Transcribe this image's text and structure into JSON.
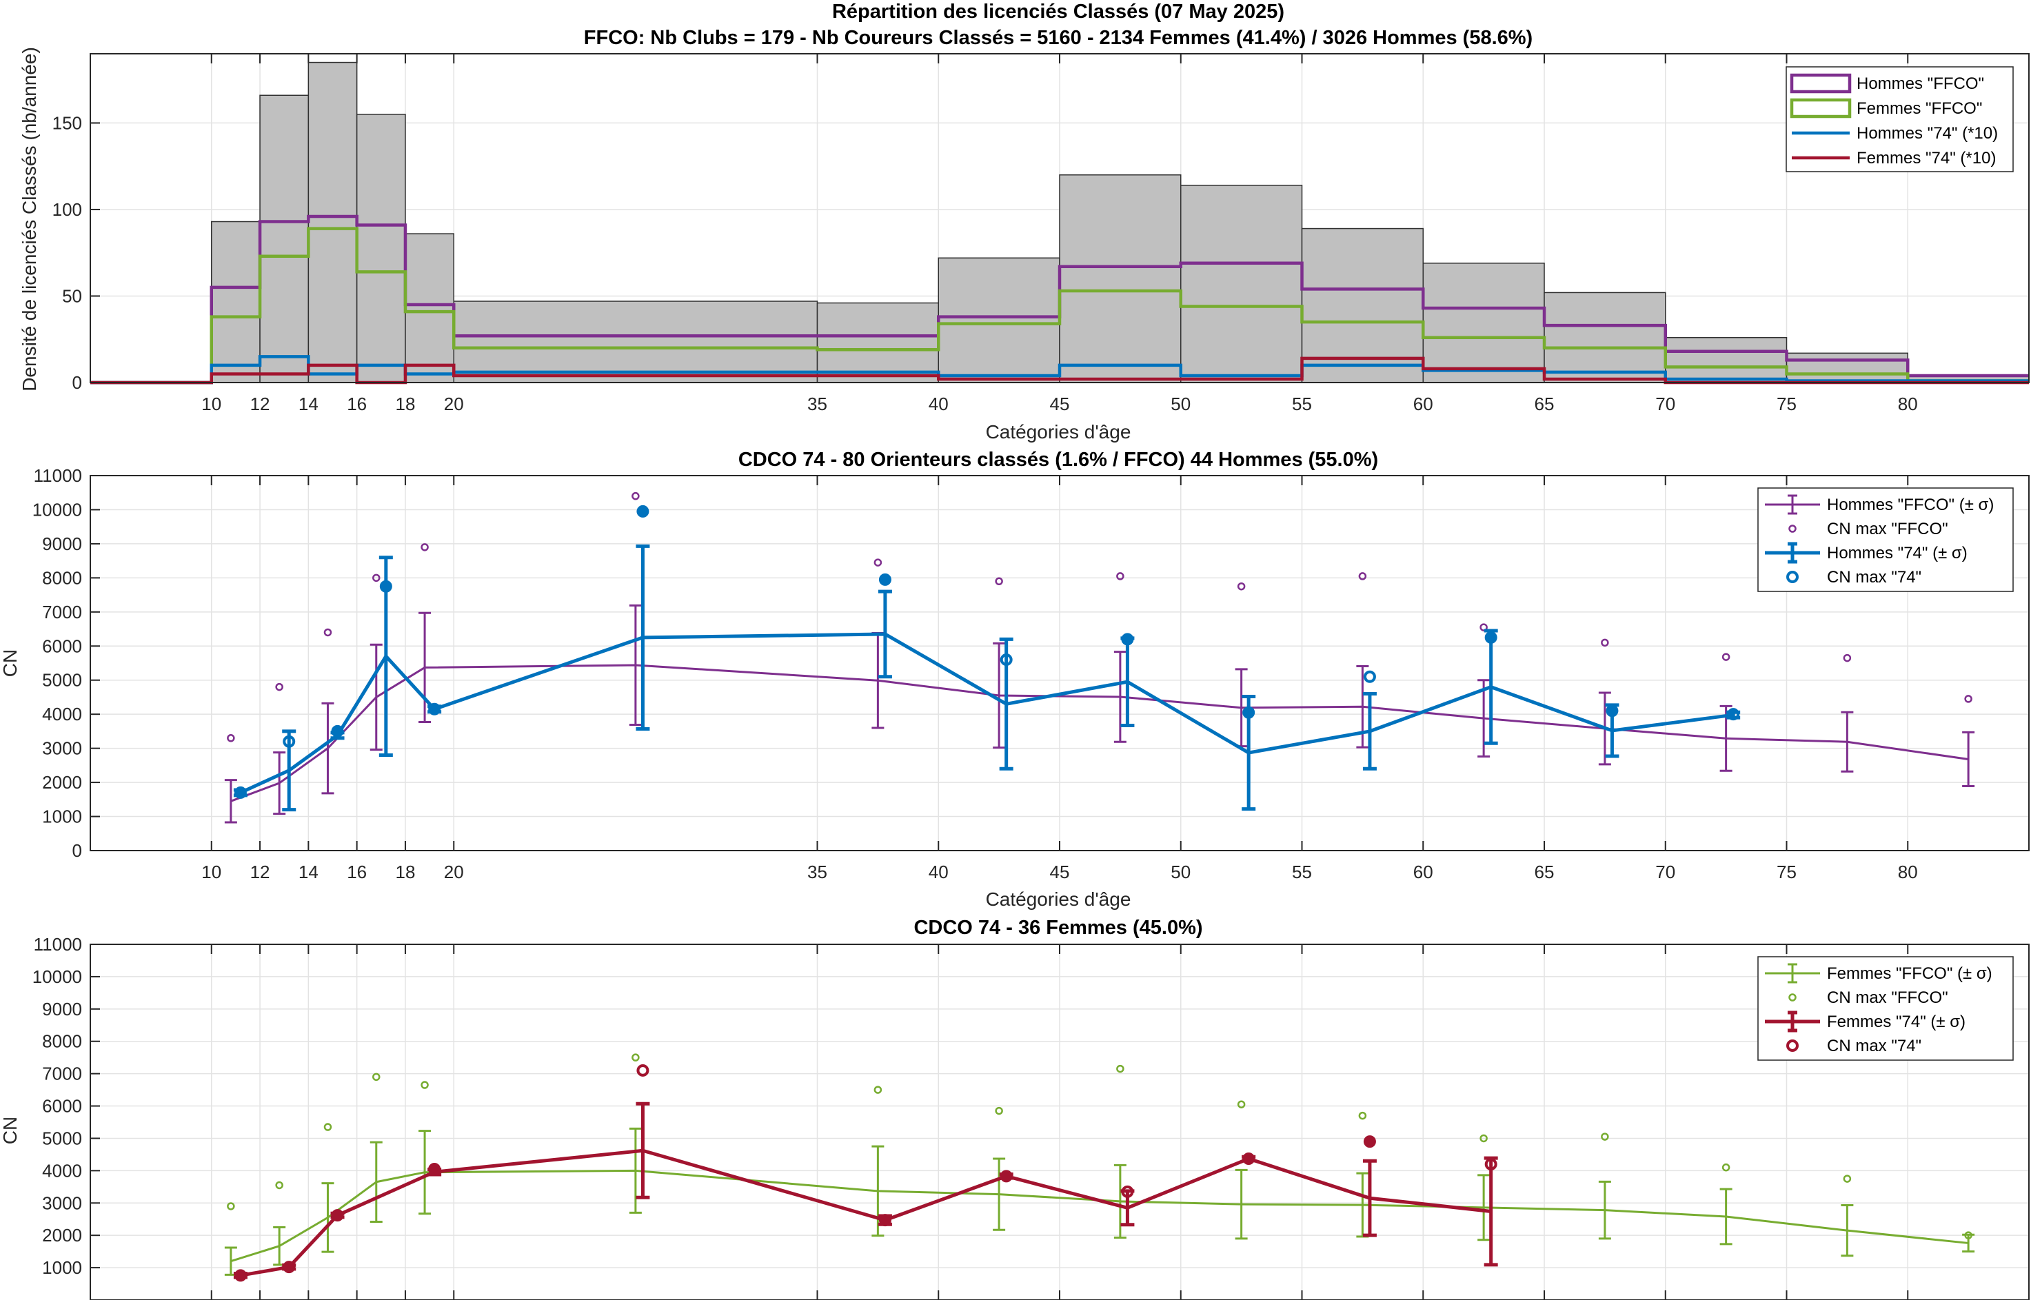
{
  "colors": {
    "hist_fill": "#c0c0c0",
    "hist_edge": "#303030",
    "hommes_ffco": "#7e2f8e",
    "femmes_ffco": "#77ac30",
    "hommes_74": "#0072bd",
    "femmes_74": "#a2142f"
  },
  "chart_data": [
    {
      "type": "histogram",
      "title": "Répartition des licenciés Classés (07 May 2025)",
      "subtitle": "FFCO: Nb Clubs = 179   -   Nb Coureurs Classés = 5160   -   2134 Femmes (41.4%) / 3026 Hommes (58.6%)",
      "xlabel": "Catégories d'âge",
      "ylabel": "Densité de licenciés Classés (nb/année)",
      "xlim": [
        5,
        85
      ],
      "ylim": [
        0,
        190
      ],
      "xticks": [
        10,
        12,
        14,
        16,
        18,
        20,
        35,
        40,
        45,
        50,
        55,
        60,
        65,
        70,
        75,
        80
      ],
      "yticks": [
        0,
        50,
        100,
        150
      ],
      "bin_edges": [
        5,
        10,
        12,
        14,
        16,
        18,
        20,
        35,
        40,
        45,
        50,
        55,
        60,
        65,
        70,
        75,
        80,
        85
      ],
      "total": [
        0,
        93,
        166,
        185,
        155,
        86,
        47,
        46,
        72,
        120,
        114,
        89,
        69,
        52,
        26,
        17,
        4
      ],
      "series": [
        {
          "name": "Hommes \"FFCO\"",
          "values": [
            0,
            55,
            93,
            96,
            91,
            45,
            27,
            27,
            38,
            67,
            69,
            54,
            43,
            33,
            18,
            13,
            4
          ]
        },
        {
          "name": "Femmes \"FFCO\"",
          "values": [
            0,
            38,
            73,
            89,
            64,
            41,
            20,
            19,
            34,
            53,
            44,
            35,
            26,
            20,
            9,
            5,
            1
          ]
        },
        {
          "name": "Hommes \"74\" (*10)",
          "values": [
            0,
            10,
            15,
            5,
            10,
            5,
            6,
            6,
            4,
            10,
            4,
            10,
            7,
            6,
            2,
            1,
            1
          ]
        },
        {
          "name": "Femmes \"74\" (*10)",
          "values": [
            0,
            5,
            5,
            10,
            0,
            10,
            4,
            4,
            2,
            2,
            2,
            14,
            8,
            2,
            0,
            0,
            0
          ]
        }
      ],
      "legend_loc": "top-right"
    },
    {
      "type": "errorbar",
      "title": "CDCO 74  -  80 Orienteurs classés (1.6% / FFCO)  44 Hommes (55.0%)",
      "xlabel": "Catégories d'âge",
      "ylabel": "CN",
      "xlim": [
        5,
        85
      ],
      "ylim": [
        0,
        11000
      ],
      "xticks": [
        10,
        12,
        14,
        16,
        18,
        20,
        35,
        40,
        45,
        50,
        55,
        60,
        65,
        70,
        75,
        80
      ],
      "yticks": [
        0,
        1000,
        2000,
        3000,
        4000,
        5000,
        6000,
        7000,
        8000,
        9000,
        10000,
        11000
      ],
      "series": [
        {
          "name": "Hommes \"FFCO\" (± σ)",
          "x": [
            10.8,
            12.8,
            14.8,
            16.8,
            18.8,
            27.5,
            37.5,
            42.5,
            47.5,
            52.5,
            57.5,
            62.5,
            67.5,
            72.5,
            77.5,
            82.5
          ],
          "y": [
            1450,
            1980,
            3000,
            4500,
            5370,
            5440,
            4990,
            4550,
            4510,
            4190,
            4220,
            3880,
            3580,
            3290,
            3190,
            2680
          ],
          "err": [
            620,
            900,
            1320,
            1540,
            1600,
            1750,
            1390,
            1530,
            1320,
            1130,
            1190,
            1120,
            1050,
            950,
            870,
            790
          ]
        },
        {
          "name": "CN max \"FFCO\"",
          "x": [
            10.8,
            12.8,
            14.8,
            16.8,
            18.8,
            27.5,
            37.5,
            42.5,
            47.5,
            52.5,
            57.5,
            62.5,
            67.5,
            72.5,
            77.5,
            82.5
          ],
          "y": [
            3300,
            4800,
            6400,
            8000,
            8900,
            10400,
            8450,
            7900,
            8050,
            7750,
            8050,
            6550,
            6100,
            5680,
            5650,
            4450
          ]
        },
        {
          "name": "Hommes \"74\" (± σ)",
          "x": [
            11.2,
            13.2,
            15.2,
            17.2,
            19.2,
            27.8,
            37.8,
            42.8,
            47.8,
            52.8,
            57.8,
            62.8,
            67.8,
            72.8
          ],
          "y": [
            1700,
            2350,
            3380,
            5700,
            4150,
            6250,
            6350,
            4300,
            4950,
            2870,
            3500,
            4800,
            3520,
            3980
          ],
          "err": [
            80,
            1150,
            80,
            2900,
            80,
            2680,
            1250,
            1900,
            1280,
            1650,
            1100,
            1650,
            750,
            80
          ]
        },
        {
          "name": "CN max \"74\"",
          "x": [
            11.2,
            13.2,
            15.2,
            17.2,
            19.2,
            27.8,
            37.8,
            42.8,
            47.8,
            52.8,
            57.8,
            62.8,
            67.8,
            72.8
          ],
          "y": [
            1700,
            3200,
            3500,
            7750,
            4150,
            9950,
            7950,
            5600,
            6200,
            4050,
            5100,
            6250,
            4100,
            4000
          ]
        }
      ],
      "legend_loc": "top-right"
    },
    {
      "type": "errorbar",
      "title": "CDCO 74  -  36 Femmes (45.0%)",
      "xlabel": "",
      "ylabel": "CN",
      "xlim": [
        5,
        85
      ],
      "ylim": [
        0,
        11000
      ],
      "yticks": [
        1000,
        2000,
        3000,
        4000,
        5000,
        6000,
        7000,
        8000,
        9000,
        10000,
        11000
      ],
      "series": [
        {
          "name": "Femmes \"FFCO\" (± σ)",
          "x": [
            10.8,
            12.8,
            14.8,
            16.8,
            18.8,
            27.5,
            37.5,
            42.5,
            47.5,
            52.5,
            57.5,
            62.5,
            67.5,
            72.5,
            77.5,
            82.5
          ],
          "y": [
            1200,
            1670,
            2550,
            3650,
            3950,
            4000,
            3370,
            3270,
            3050,
            2960,
            2940,
            2860,
            2780,
            2580,
            2150,
            1760
          ],
          "err": [
            420,
            580,
            1060,
            1230,
            1280,
            1300,
            1380,
            1100,
            1120,
            1060,
            980,
            1000,
            880,
            850,
            780,
            260
          ]
        },
        {
          "name": "CN max \"FFCO\"",
          "x": [
            10.8,
            12.8,
            14.8,
            16.8,
            18.8,
            27.5,
            37.5,
            42.5,
            47.5,
            52.5,
            57.5,
            62.5,
            67.5,
            72.5,
            77.5,
            82.5
          ],
          "y": [
            2900,
            3550,
            5350,
            6900,
            6650,
            7500,
            6500,
            5850,
            7150,
            6050,
            5700,
            5000,
            5050,
            4100,
            3750,
            2000
          ]
        },
        {
          "name": "Femmes \"74\" (± σ)",
          "x": [
            11.2,
            13.2,
            15.2,
            19.2,
            27.8,
            37.8,
            42.8,
            47.8,
            52.8,
            57.8,
            62.8
          ],
          "y": [
            760,
            1020,
            2620,
            3960,
            4620,
            2470,
            3830,
            2850,
            4370,
            3150,
            2740
          ],
          "err": [
            60,
            60,
            60,
            80,
            1450,
            130,
            60,
            520,
            60,
            1150,
            1650
          ]
        },
        {
          "name": "CN max \"74\"",
          "x": [
            11.2,
            13.2,
            15.2,
            19.2,
            27.8,
            37.8,
            42.8,
            47.8,
            52.8,
            57.8,
            62.8
          ],
          "y": [
            760,
            1020,
            2620,
            4050,
            7100,
            2470,
            3830,
            3350,
            4370,
            4900,
            4200
          ]
        }
      ],
      "legend_loc": "top-right"
    }
  ]
}
